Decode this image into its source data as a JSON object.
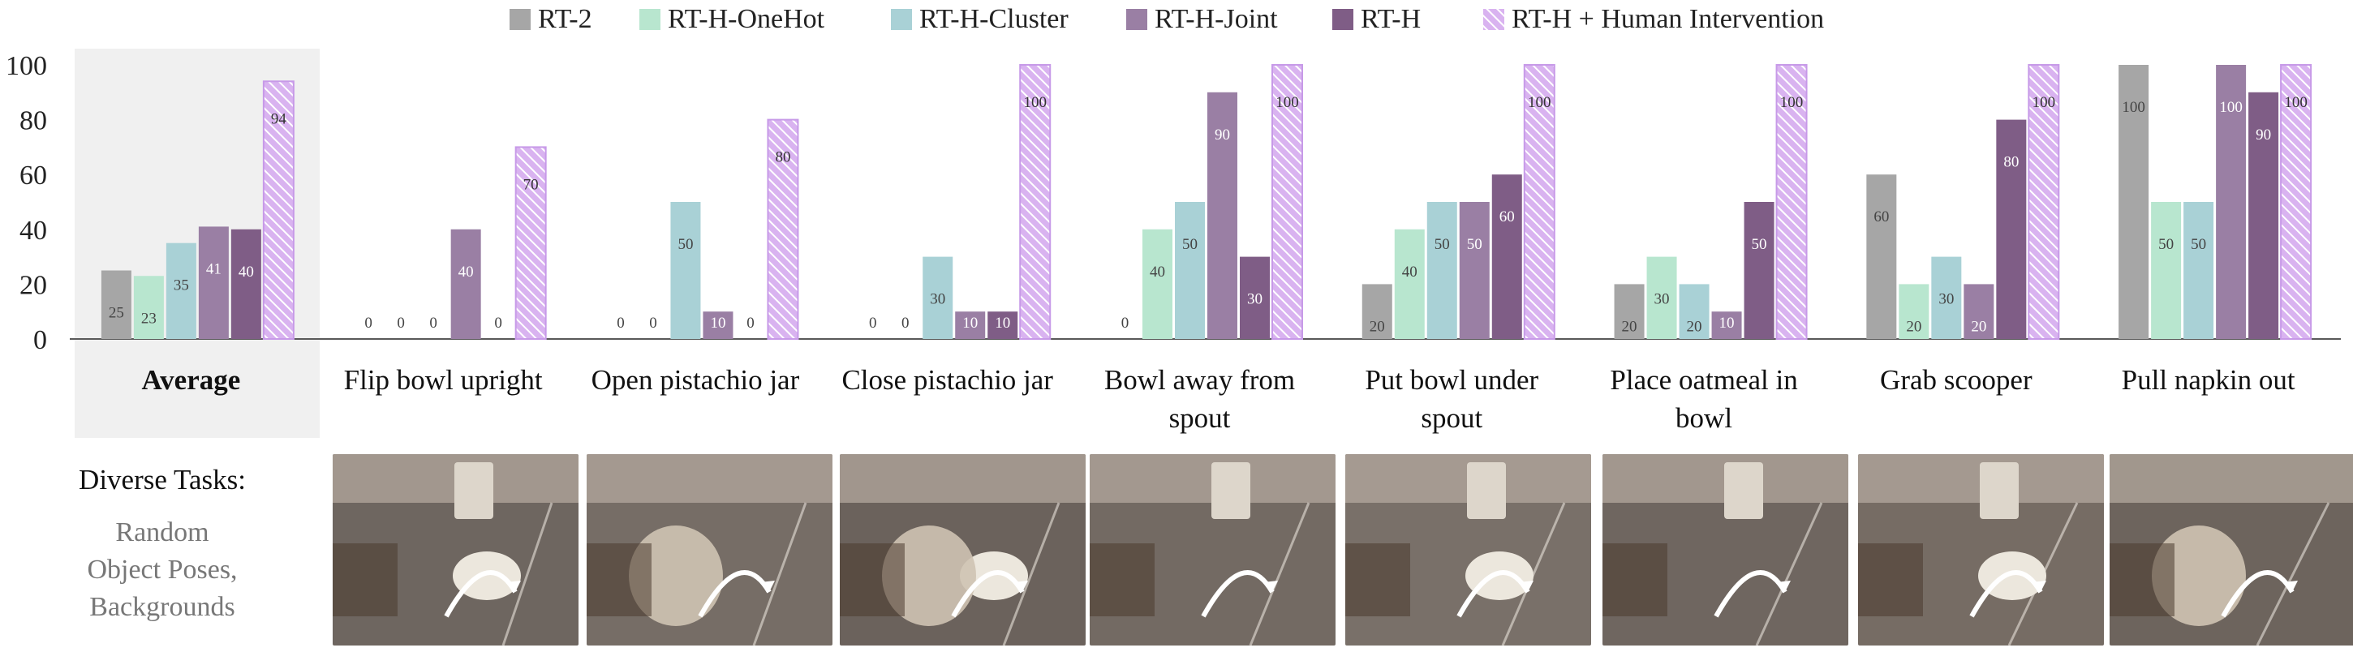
{
  "chart_data": {
    "type": "bar",
    "categories": [
      "Average",
      "Flip bowl upright",
      "Open pistachio jar",
      "Close pistachio jar",
      "Bowl away from spout",
      "Put bowl under spout",
      "Place oatmeal in bowl",
      "Grab scooper",
      "Pull napkin out"
    ],
    "series": [
      {
        "name": "RT-2",
        "color": "#a6a6a6",
        "values": [
          25,
          0,
          0,
          0,
          0,
          20,
          20,
          60,
          100
        ]
      },
      {
        "name": "RT-H-OneHot",
        "color": "#b8e6cf",
        "values": [
          23,
          0,
          0,
          0,
          40,
          40,
          30,
          20,
          50
        ]
      },
      {
        "name": "RT-H-Cluster",
        "color": "#a9d1d6",
        "values": [
          35,
          0,
          50,
          30,
          50,
          50,
          20,
          30,
          50
        ]
      },
      {
        "name": "RT-H-Joint",
        "color": "#9a7fa4",
        "values": [
          41,
          40,
          10,
          10,
          90,
          50,
          10,
          20,
          100
        ]
      },
      {
        "name": "RT-H",
        "color": "#7f5d86",
        "values": [
          40,
          0,
          0,
          10,
          30,
          60,
          50,
          80,
          90
        ]
      },
      {
        "name": "RT-H + Human Intervention",
        "color": "#d9b3f0",
        "values": [
          94,
          70,
          80,
          100,
          100,
          100,
          100,
          100,
          100
        ]
      }
    ],
    "ylim": [
      0,
      100
    ],
    "yticks": [
      0,
      20,
      40,
      60,
      80,
      100
    ],
    "legend": "top",
    "grid": false,
    "highlighted_category": "Average"
  },
  "side_panel": {
    "title": "Diverse Tasks:",
    "subtitle_lines": [
      "Random",
      "Object Poses,",
      "Backgrounds"
    ]
  },
  "colors": {
    "average_panel_bg": "#f0f0f0",
    "hatch_stripe": "#ffffff",
    "axis": "#595959",
    "label_dark": "#ffffff",
    "label_light": "#444444"
  }
}
